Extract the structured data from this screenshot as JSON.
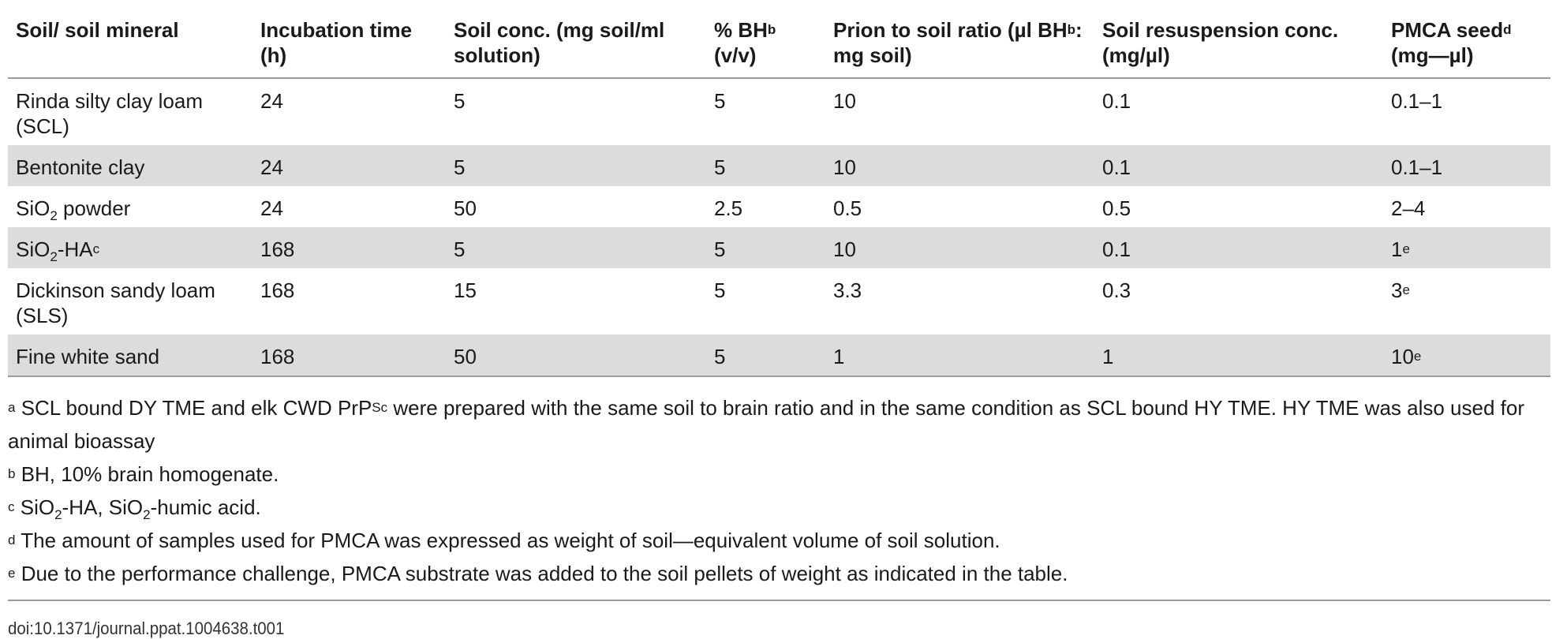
{
  "table": {
    "headers": {
      "c1": "Soil/ soil mineral",
      "c2": "Incubation time (h)",
      "c3": "Soil conc. (mg soil/ml solution)",
      "c4_pre": "% BH",
      "c4_sup": "b",
      "c4_post": "(v/v)",
      "c5_pre": "Prion to soil ratio (µl BH",
      "c5_sup": "b",
      "c5_post": ": mg soil)",
      "c6": "Soil resuspension conc. (mg/µl)",
      "c7_pre": "PMCA seed",
      "c7_sup": "d",
      "c7_post": "(mg—µl)"
    },
    "rows": [
      {
        "soil": "Rinda silty clay loam (SCL)",
        "time": "24",
        "conc": "5",
        "bh": "5",
        "ratio": "10",
        "resusp": "0.1",
        "seed": "0.1–1",
        "seed_sup": ""
      },
      {
        "soil": "Bentonite clay",
        "time": "24",
        "conc": "5",
        "bh": "5",
        "ratio": "10",
        "resusp": "0.1",
        "seed": "0.1–1",
        "seed_sup": ""
      },
      {
        "soil_a": "SiO",
        "soil_sub": "2",
        "soil_b": " powder",
        "time": "24",
        "conc": "50",
        "bh": "2.5",
        "ratio": "0.5",
        "resusp": "0.5",
        "seed": "2–4",
        "seed_sup": ""
      },
      {
        "soil_a": "SiO",
        "soil_sub": "2",
        "soil_b": "-HA",
        "soil_sup": "c",
        "time": "168",
        "conc": "5",
        "bh": "5",
        "ratio": "10",
        "resusp": "0.1",
        "seed": "1",
        "seed_sup": "e"
      },
      {
        "soil": "Dickinson sandy loam (SLS)",
        "time": "168",
        "conc": "15",
        "bh": "5",
        "ratio": "3.3",
        "resusp": "0.3",
        "seed": "3",
        "seed_sup": "e"
      },
      {
        "soil": "Fine white sand",
        "time": "168",
        "conc": "50",
        "bh": "5",
        "ratio": "1",
        "resusp": "1",
        "seed": "10",
        "seed_sup": "e"
      }
    ]
  },
  "footnotes": {
    "a_mark": "a",
    "a_pre": " SCL bound DY TME and elk CWD PrP",
    "a_sup": "Sc",
    "a_post": " were prepared with the same soil to brain ratio and in the same condition as SCL bound HY TME. HY TME was also used for animal bioassay",
    "b_mark": "b",
    "b_text": " BH, 10% brain homogenate.",
    "c_mark": "c",
    "c_1": " SiO",
    "c_sub1": "2",
    "c_2": "-HA, SiO",
    "c_sub2": "2",
    "c_3": "-humic acid.",
    "d_mark": "d",
    "d_text": " The amount of samples used for PMCA was expressed as weight of soil—equivalent volume of soil solution.",
    "e_mark": "e",
    "e_text": " Due to the performance challenge, PMCA substrate was added to the soil pellets of weight as indicated in the table."
  },
  "doi": "doi:10.1371/journal.ppat.1004638.t001",
  "colors": {
    "row_shade": "#dcdcdc",
    "rule": "#9a9a9a"
  }
}
